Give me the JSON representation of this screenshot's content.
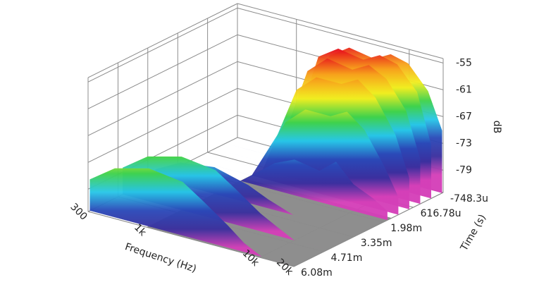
{
  "chart_data": {
    "type": "waterfall",
    "xlabel": "Frequency (Hz)",
    "ylabel": "Time (s)",
    "zlabel": "dB",
    "x": [
      300,
      500,
      1000,
      2000,
      3000,
      5000,
      7000,
      10000,
      15000,
      20000
    ],
    "xlim": [
      300,
      20000
    ],
    "xscale": "log",
    "xticks": [
      300,
      {
        "value": 1000,
        "label": "1k"
      },
      {
        "value": 10000,
        "label": "10k"
      },
      {
        "value": 20000,
        "label": "20k"
      }
    ],
    "ylim": [
      -0.0007483,
      0.00608
    ],
    "yticks": [
      {
        "value": -0.0007483,
        "label": "-748.3u"
      },
      {
        "value": 0.00061678,
        "label": "616.78u"
      },
      {
        "value": 0.00198,
        "label": "1.98m"
      },
      {
        "value": 0.00335,
        "label": "3.35m"
      },
      {
        "value": 0.00471,
        "label": "4.71m"
      },
      {
        "value": 0.00608,
        "label": "6.08m"
      }
    ],
    "zlim": [
      -84,
      -54
    ],
    "zticks": [
      -55,
      -61,
      -67,
      -73,
      -79
    ],
    "grid": true,
    "colorscale": [
      "#e8141c",
      "#f7a21b",
      "#f2ee20",
      "#3fd24a",
      "#27c7e8",
      "#2a49b8",
      "#3a2f9e",
      "#d43fb8"
    ],
    "slices": [
      {
        "time": -0.0007,
        "values": [
          -84,
          -84,
          -84,
          -60,
          -57,
          -58,
          -56,
          -57,
          -62,
          -70
        ]
      },
      {
        "time": -0.0002,
        "values": [
          -84,
          -84,
          -84,
          -59,
          -56,
          -57,
          -55,
          -56,
          -61,
          -72
        ]
      },
      {
        "time": 0.0003,
        "values": [
          -84,
          -84,
          -84,
          -61,
          -57,
          -58,
          -56,
          -58,
          -64,
          -74
        ]
      },
      {
        "time": 0.0008,
        "values": [
          -84,
          -84,
          -84,
          -64,
          -60,
          -60,
          -58,
          -61,
          -68,
          -77
        ]
      },
      {
        "time": 0.0013,
        "values": [
          -84,
          -84,
          -84,
          -70,
          -66,
          -66,
          -64,
          -67,
          -74,
          -80
        ]
      },
      {
        "time": 0.0018,
        "values": [
          -84,
          -84,
          -84,
          -78,
          -76,
          -77,
          -74,
          -78,
          -80,
          -82
        ]
      },
      {
        "time": 0.003,
        "values": [
          -82,
          -79,
          -78,
          -80,
          -82,
          -84,
          -84,
          -84,
          -84,
          -84
        ]
      },
      {
        "time": 0.0045,
        "values": [
          -78,
          -74,
          -72,
          -73,
          -76,
          -80,
          -82,
          -84,
          -84,
          -84
        ]
      },
      {
        "time": 0.006,
        "values": [
          -77,
          -73,
          -71,
          -72,
          -75,
          -79,
          -82,
          -84,
          -84,
          -84
        ]
      }
    ]
  }
}
